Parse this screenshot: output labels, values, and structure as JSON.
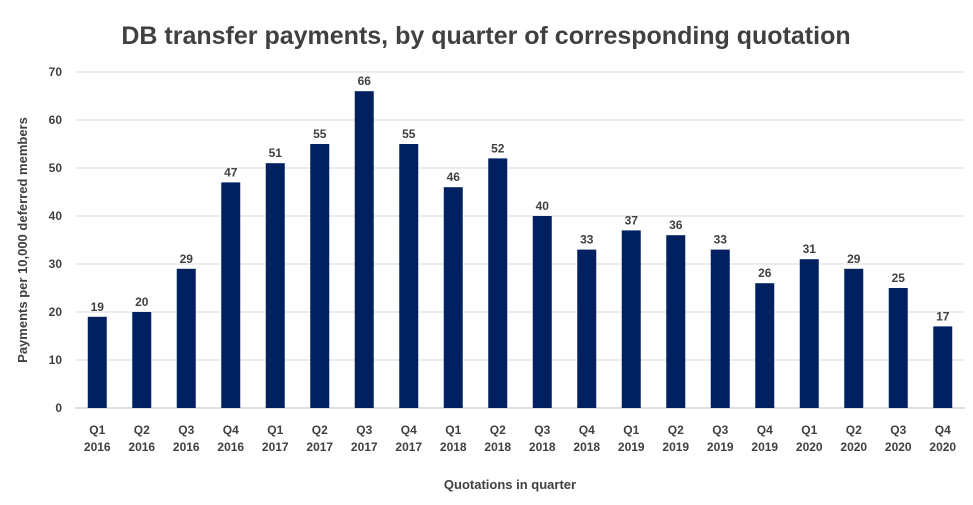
{
  "chart_data": {
    "type": "bar",
    "title": "DB transfer payments, by quarter of corresponding quotation",
    "xlabel": "Quotations in quarter",
    "ylabel": "Payments per 10,000 deferred members",
    "ylim": [
      0,
      70
    ],
    "yticks": [
      0,
      10,
      20,
      30,
      40,
      50,
      60,
      70
    ],
    "grid": true,
    "legend": "none",
    "bar_color": "#002060",
    "categories": [
      {
        "q": "Q1",
        "y": "2016"
      },
      {
        "q": "Q2",
        "y": "2016"
      },
      {
        "q": "Q3",
        "y": "2016"
      },
      {
        "q": "Q4",
        "y": "2016"
      },
      {
        "q": "Q1",
        "y": "2017"
      },
      {
        "q": "Q2",
        "y": "2017"
      },
      {
        "q": "Q3",
        "y": "2017"
      },
      {
        "q": "Q4",
        "y": "2017"
      },
      {
        "q": "Q1",
        "y": "2018"
      },
      {
        "q": "Q2",
        "y": "2018"
      },
      {
        "q": "Q3",
        "y": "2018"
      },
      {
        "q": "Q4",
        "y": "2018"
      },
      {
        "q": "Q1",
        "y": "2019"
      },
      {
        "q": "Q2",
        "y": "2019"
      },
      {
        "q": "Q3",
        "y": "2019"
      },
      {
        "q": "Q4",
        "y": "2019"
      },
      {
        "q": "Q1",
        "y": "2020"
      },
      {
        "q": "Q2",
        "y": "2020"
      },
      {
        "q": "Q3",
        "y": "2020"
      },
      {
        "q": "Q4",
        "y": "2020"
      }
    ],
    "values": [
      19,
      20,
      29,
      47,
      51,
      55,
      66,
      55,
      46,
      52,
      40,
      33,
      37,
      36,
      33,
      26,
      31,
      29,
      25,
      17
    ],
    "data_labels": [
      "19",
      "20",
      "29",
      "47",
      "51",
      "55",
      "66",
      "55",
      "46",
      "52",
      "40",
      "33",
      "37",
      "36",
      "33",
      "26",
      "31",
      "29",
      "25",
      "17"
    ]
  }
}
